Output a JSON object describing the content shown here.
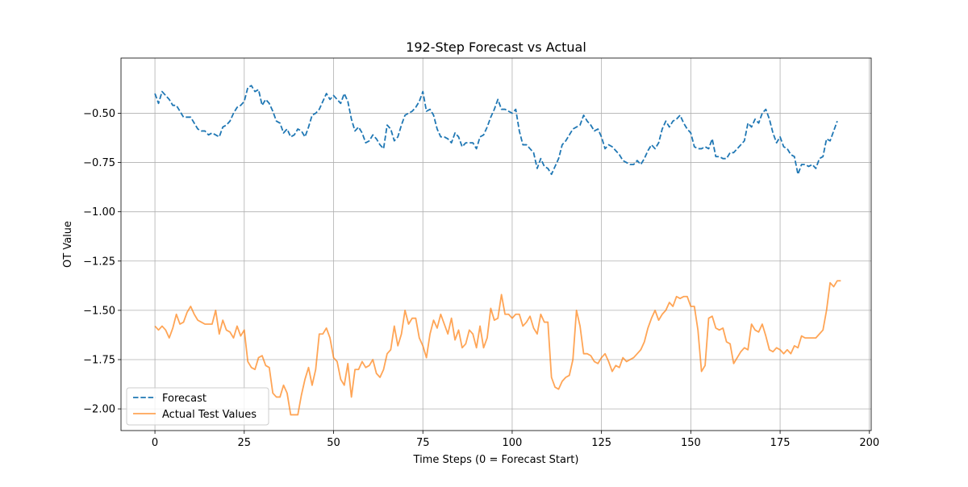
{
  "chart_data": {
    "type": "line",
    "title": "192-Step Forecast vs Actual",
    "xlabel": "Time Steps (0 = Forecast Start)",
    "ylabel": "OT Value",
    "xlim": [
      -9.5,
      200.5
    ],
    "ylim": [
      -2.11,
      -0.22
    ],
    "xticks": [
      0,
      25,
      50,
      75,
      100,
      125,
      150,
      175,
      200
    ],
    "xtick_labels": [
      "0",
      "25",
      "50",
      "75",
      "100",
      "125",
      "150",
      "175",
      "200"
    ],
    "yticks": [
      -0.5,
      -0.75,
      -1.0,
      -1.25,
      -1.5,
      -1.75,
      -2.0
    ],
    "ytick_labels": [
      "−0.50",
      "−0.75",
      "−1.00",
      "−1.25",
      "−1.50",
      "−1.75",
      "−2.00"
    ],
    "grid": true,
    "legend_position": "lower-left",
    "series": [
      {
        "name": "Forecast",
        "color": "#1f77b4",
        "style": "dashed",
        "x_start": 0,
        "x_step": 1,
        "values": [
          -0.4,
          -0.45,
          -0.39,
          -0.41,
          -0.43,
          -0.46,
          -0.46,
          -0.49,
          -0.52,
          -0.52,
          -0.52,
          -0.55,
          -0.58,
          -0.59,
          -0.59,
          -0.61,
          -0.6,
          -0.61,
          -0.62,
          -0.57,
          -0.56,
          -0.54,
          -0.5,
          -0.47,
          -0.46,
          -0.44,
          -0.37,
          -0.36,
          -0.39,
          -0.38,
          -0.46,
          -0.43,
          -0.45,
          -0.49,
          -0.54,
          -0.55,
          -0.6,
          -0.58,
          -0.62,
          -0.61,
          -0.58,
          -0.59,
          -0.62,
          -0.57,
          -0.51,
          -0.5,
          -0.48,
          -0.44,
          -0.4,
          -0.43,
          -0.41,
          -0.43,
          -0.45,
          -0.4,
          -0.44,
          -0.53,
          -0.59,
          -0.57,
          -0.6,
          -0.65,
          -0.64,
          -0.61,
          -0.63,
          -0.66,
          -0.68,
          -0.56,
          -0.58,
          -0.64,
          -0.62,
          -0.56,
          -0.51,
          -0.5,
          -0.49,
          -0.47,
          -0.44,
          -0.39,
          -0.49,
          -0.48,
          -0.51,
          -0.58,
          -0.62,
          -0.62,
          -0.63,
          -0.65,
          -0.6,
          -0.62,
          -0.67,
          -0.65,
          -0.65,
          -0.65,
          -0.68,
          -0.62,
          -0.61,
          -0.57,
          -0.52,
          -0.48,
          -0.43,
          -0.48,
          -0.48,
          -0.49,
          -0.5,
          -0.48,
          -0.59,
          -0.66,
          -0.66,
          -0.68,
          -0.7,
          -0.78,
          -0.73,
          -0.77,
          -0.78,
          -0.81,
          -0.77,
          -0.73,
          -0.66,
          -0.64,
          -0.61,
          -0.58,
          -0.57,
          -0.56,
          -0.51,
          -0.54,
          -0.56,
          -0.59,
          -0.58,
          -0.62,
          -0.68,
          -0.66,
          -0.67,
          -0.69,
          -0.71,
          -0.74,
          -0.75,
          -0.76,
          -0.76,
          -0.74,
          -0.76,
          -0.73,
          -0.69,
          -0.66,
          -0.68,
          -0.65,
          -0.58,
          -0.54,
          -0.57,
          -0.54,
          -0.53,
          -0.51,
          -0.55,
          -0.58,
          -0.6,
          -0.67,
          -0.68,
          -0.68,
          -0.67,
          -0.68,
          -0.63,
          -0.72,
          -0.72,
          -0.73,
          -0.73,
          -0.7,
          -0.7,
          -0.68,
          -0.66,
          -0.64,
          -0.55,
          -0.57,
          -0.53,
          -0.55,
          -0.5,
          -0.48,
          -0.53,
          -0.6,
          -0.65,
          -0.62,
          -0.67,
          -0.68,
          -0.71,
          -0.72,
          -0.81,
          -0.76,
          -0.76,
          -0.77,
          -0.76,
          -0.78,
          -0.73,
          -0.72,
          -0.63,
          -0.64,
          -0.59,
          -0.54
        ]
      },
      {
        "name": "Actual Test Values",
        "color": "#ff7f0e",
        "style": "solid",
        "x_start": 0,
        "x_step": 1,
        "values": [
          -1.58,
          -1.6,
          -1.58,
          -1.6,
          -1.64,
          -1.59,
          -1.52,
          -1.57,
          -1.56,
          -1.51,
          -1.48,
          -1.52,
          -1.55,
          -1.56,
          -1.57,
          -1.57,
          -1.57,
          -1.5,
          -1.62,
          -1.55,
          -1.6,
          -1.61,
          -1.64,
          -1.58,
          -1.63,
          -1.6,
          -1.76,
          -1.79,
          -1.8,
          -1.74,
          -1.73,
          -1.78,
          -1.79,
          -1.92,
          -1.94,
          -1.94,
          -1.88,
          -1.92,
          -2.03,
          -2.03,
          -2.03,
          -1.93,
          -1.85,
          -1.79,
          -1.88,
          -1.8,
          -1.62,
          -1.62,
          -1.59,
          -1.64,
          -1.74,
          -1.76,
          -1.85,
          -1.88,
          -1.77,
          -1.94,
          -1.8,
          -1.8,
          -1.76,
          -1.79,
          -1.78,
          -1.75,
          -1.82,
          -1.84,
          -1.8,
          -1.72,
          -1.7,
          -1.58,
          -1.68,
          -1.62,
          -1.5,
          -1.57,
          -1.54,
          -1.54,
          -1.64,
          -1.68,
          -1.74,
          -1.62,
          -1.55,
          -1.59,
          -1.52,
          -1.57,
          -1.62,
          -1.54,
          -1.65,
          -1.6,
          -1.69,
          -1.67,
          -1.6,
          -1.62,
          -1.69,
          -1.58,
          -1.69,
          -1.64,
          -1.49,
          -1.55,
          -1.54,
          -1.42,
          -1.52,
          -1.52,
          -1.54,
          -1.52,
          -1.52,
          -1.58,
          -1.56,
          -1.53,
          -1.59,
          -1.62,
          -1.52,
          -1.56,
          -1.56,
          -1.84,
          -1.89,
          -1.9,
          -1.86,
          -1.84,
          -1.83,
          -1.75,
          -1.5,
          -1.58,
          -1.72,
          -1.72,
          -1.73,
          -1.76,
          -1.77,
          -1.74,
          -1.72,
          -1.76,
          -1.81,
          -1.78,
          -1.79,
          -1.74,
          -1.76,
          -1.75,
          -1.74,
          -1.72,
          -1.7,
          -1.66,
          -1.59,
          -1.54,
          -1.5,
          -1.55,
          -1.52,
          -1.5,
          -1.46,
          -1.48,
          -1.43,
          -1.44,
          -1.43,
          -1.43,
          -1.48,
          -1.48,
          -1.6,
          -1.81,
          -1.78,
          -1.54,
          -1.53,
          -1.59,
          -1.6,
          -1.59,
          -1.66,
          -1.67,
          -1.77,
          -1.74,
          -1.71,
          -1.69,
          -1.7,
          -1.57,
          -1.6,
          -1.61,
          -1.57,
          -1.63,
          -1.7,
          -1.71,
          -1.69,
          -1.7,
          -1.72,
          -1.7,
          -1.72,
          -1.68,
          -1.69,
          -1.63,
          -1.64,
          -1.64,
          -1.64,
          -1.64,
          -1.62,
          -1.6,
          -1.5,
          -1.36,
          -1.38,
          -1.35,
          -1.35
        ]
      }
    ]
  }
}
